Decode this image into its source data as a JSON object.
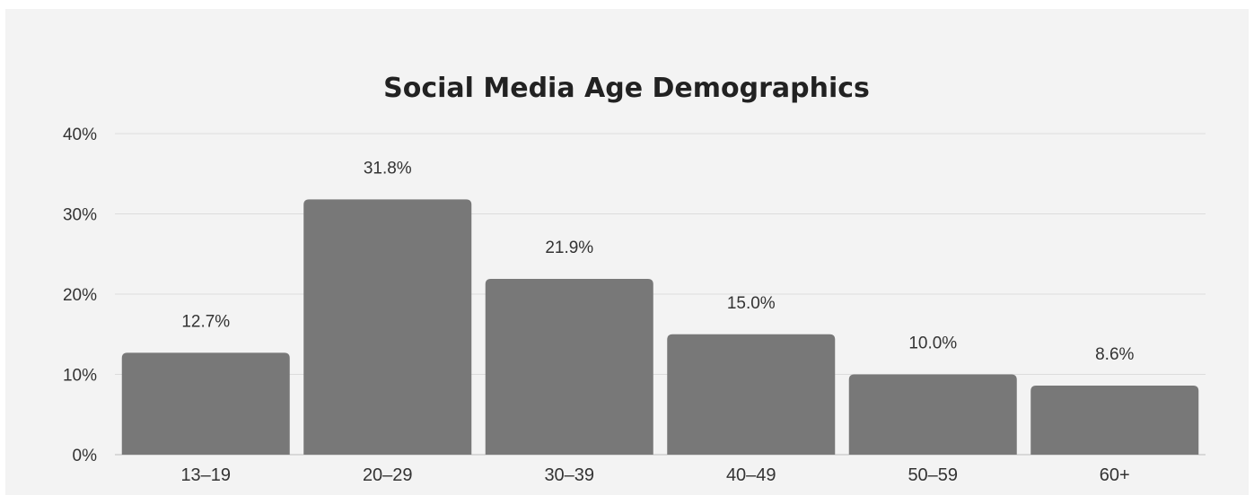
{
  "chart_data": {
    "type": "bar",
    "title": "Social Media Age Demographics",
    "xlabel": "",
    "ylabel": "",
    "categories": [
      "13–19",
      "20–29",
      "30–39",
      "40–49",
      "50–59",
      "60+"
    ],
    "values": [
      12.7,
      31.8,
      21.9,
      15.0,
      10.0,
      8.6
    ],
    "data_labels": [
      "12.7%",
      "31.8%",
      "21.9%",
      "15.0%",
      "10.0%",
      "8.6%"
    ],
    "yticks": [
      0,
      10,
      20,
      30,
      40
    ],
    "ytick_labels": [
      "0%",
      "10%",
      "20%",
      "30%",
      "40%"
    ],
    "ylim": [
      0,
      40
    ],
    "grid": true,
    "legend": "none",
    "bar_color": "#787878",
    "background_color": "#f3f3f3"
  }
}
